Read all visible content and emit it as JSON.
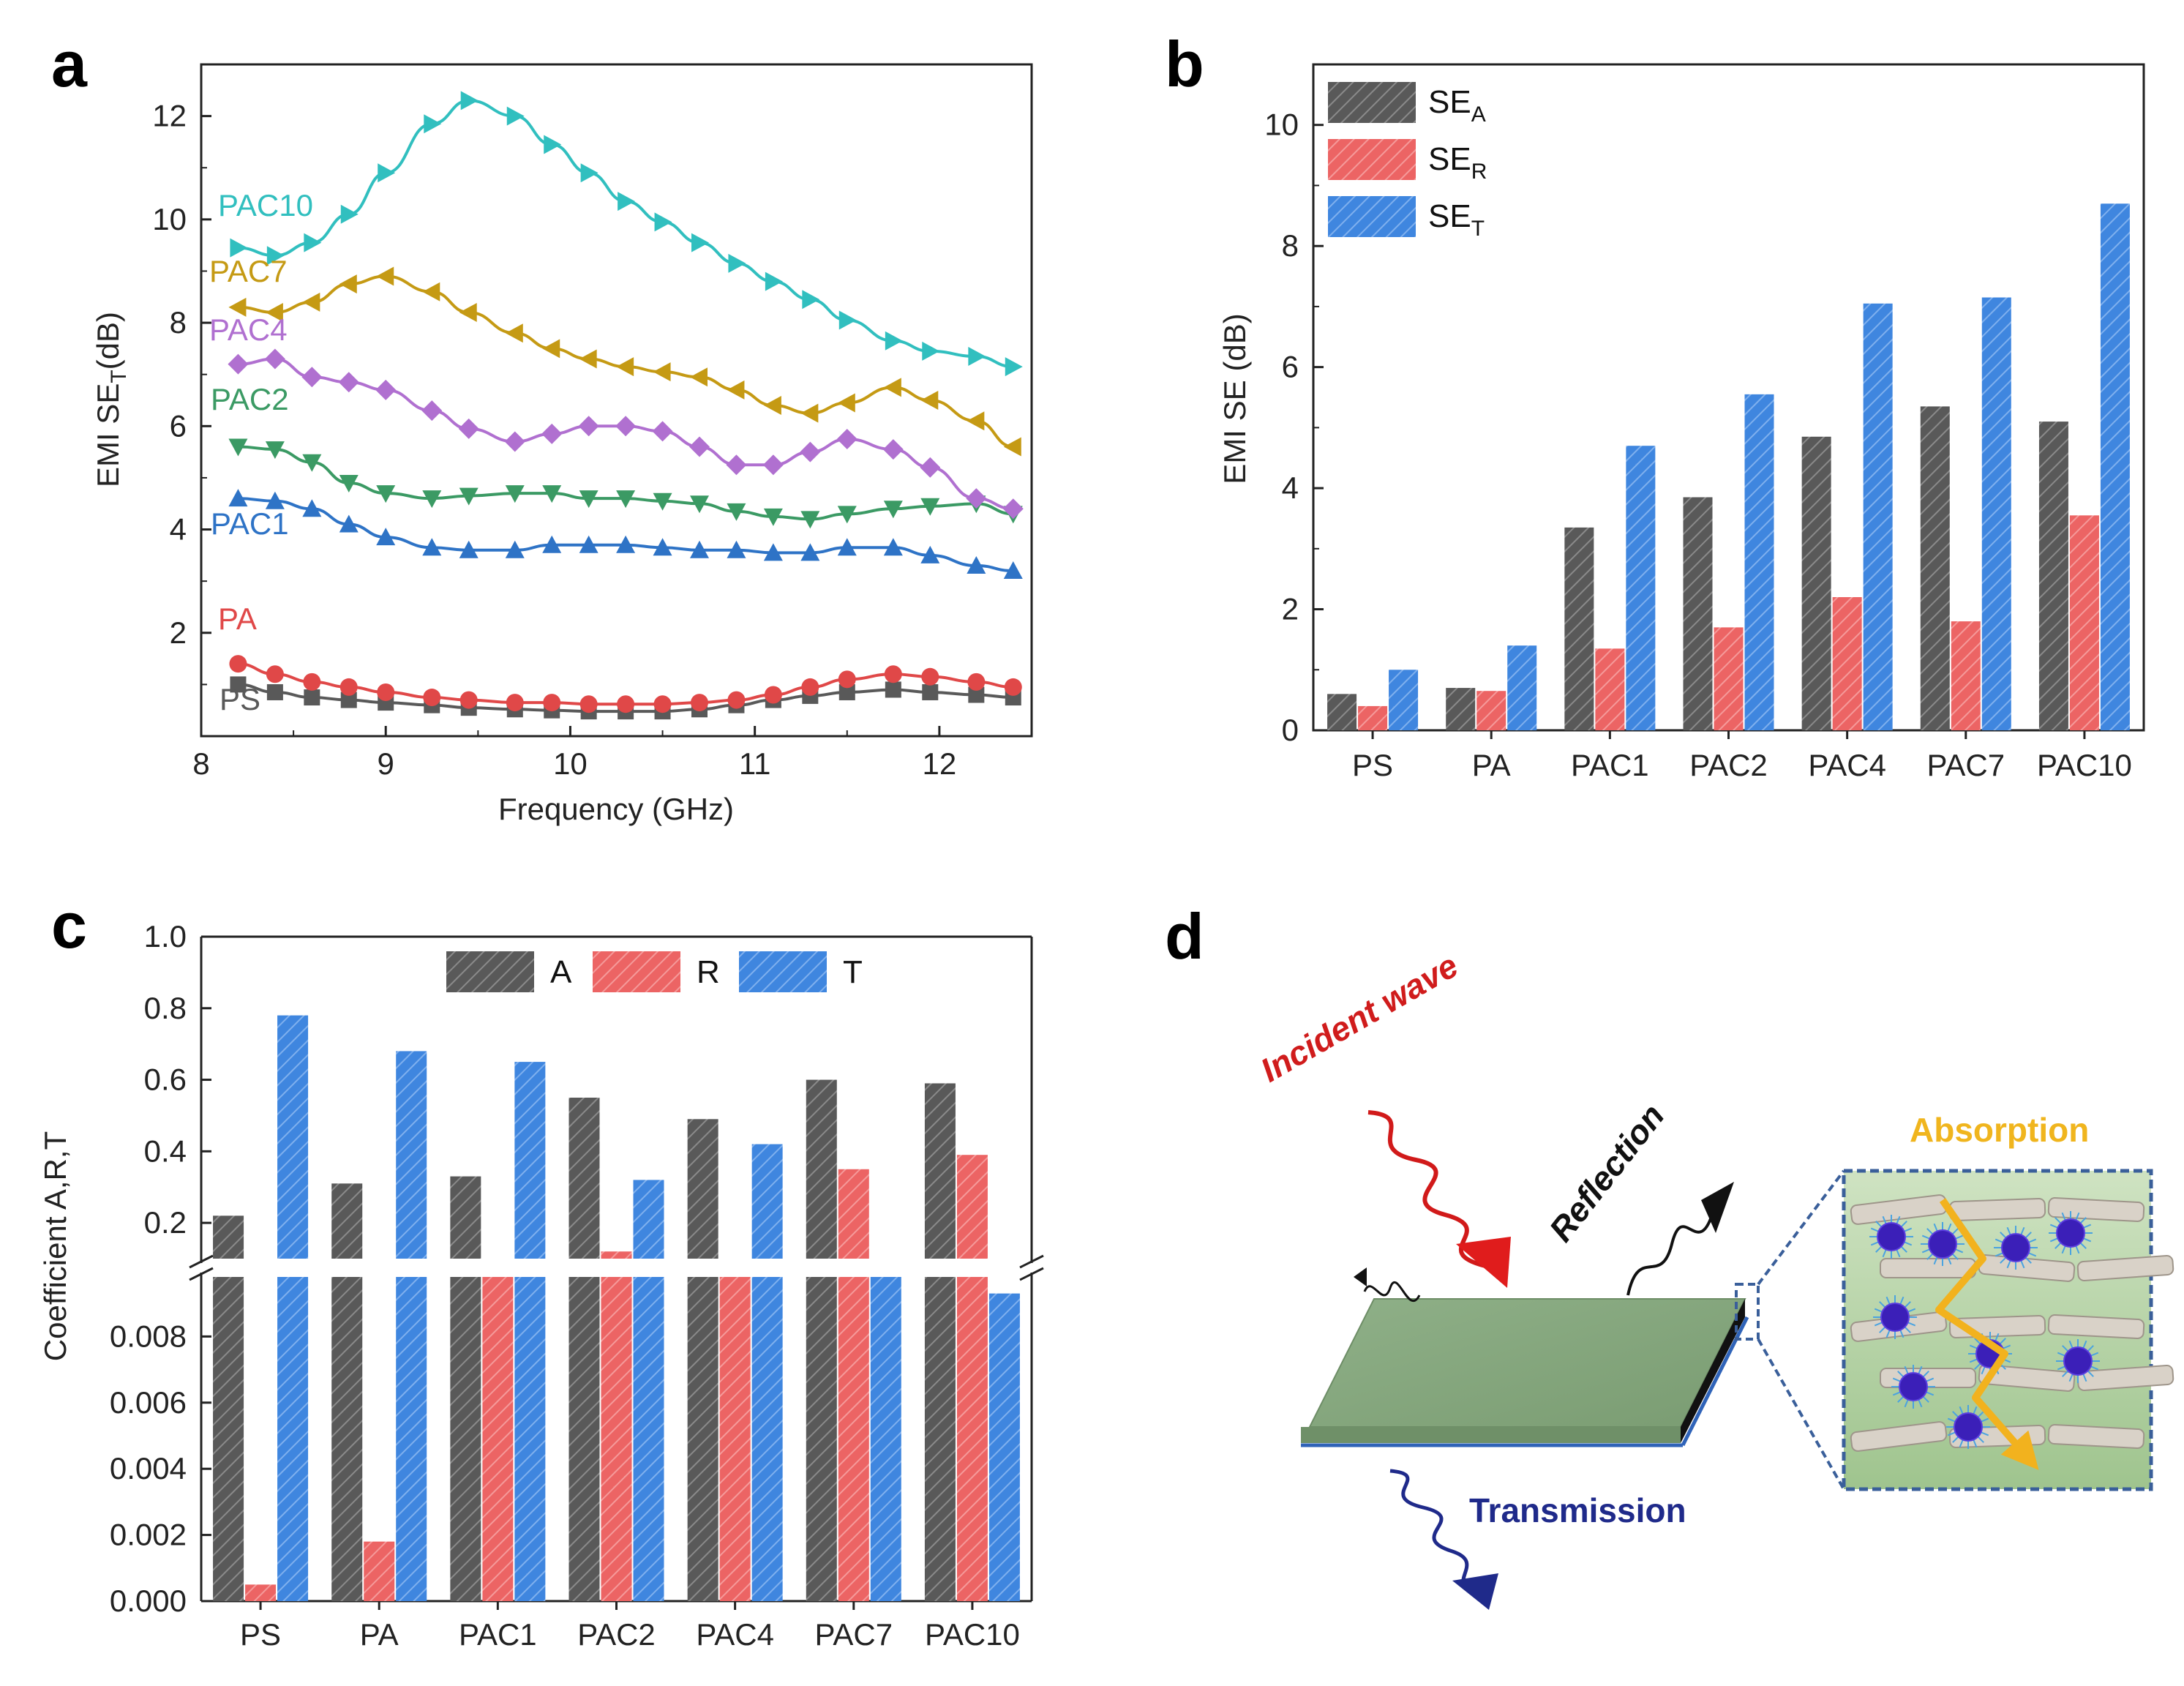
{
  "colors": {
    "PS": "#595959",
    "PA": "#e04848",
    "PAC1": "#2e73c6",
    "PAC2": "#3b9a64",
    "PAC4": "#b070d0",
    "PAC7": "#c59a14",
    "PAC10": "#31bfbf",
    "A": "#595959",
    "R": "#ec6464",
    "T": "#3f86df",
    "SE_A": "#595959",
    "SE_R": "#ec6464",
    "SE_T": "#3f86df"
  },
  "panels": {
    "a": "a",
    "b": "b",
    "c": "c",
    "d": "d"
  },
  "chart_data": [
    {
      "id": "a",
      "type": "line",
      "xlabel": "Frequency (GHz)",
      "ylabel": "EMI SE",
      "ylabel_sub": "T",
      "ylabel_suffix": "(dB)",
      "xlim": [
        8,
        12.5
      ],
      "ylim": [
        0,
        13
      ],
      "xticks": [
        "8",
        "9",
        "10",
        "11",
        "12"
      ],
      "yticks": [
        "2",
        "4",
        "6",
        "8",
        "10",
        "12"
      ],
      "x": [
        8.2,
        8.4,
        8.6,
        8.8,
        9.0,
        9.25,
        9.45,
        9.7,
        9.9,
        10.1,
        10.3,
        10.5,
        10.7,
        10.9,
        11.1,
        11.3,
        11.5,
        11.75,
        11.95,
        12.2,
        12.4
      ],
      "series": [
        {
          "name": "PS",
          "label": "PS",
          "marker": "square",
          "values": [
            1.0,
            0.85,
            0.75,
            0.7,
            0.65,
            0.6,
            0.55,
            0.52,
            0.5,
            0.48,
            0.48,
            0.48,
            0.52,
            0.6,
            0.7,
            0.78,
            0.85,
            0.9,
            0.85,
            0.8,
            0.75
          ]
        },
        {
          "name": "PA",
          "label": "PA",
          "marker": "circle",
          "values": [
            1.4,
            1.2,
            1.05,
            0.95,
            0.85,
            0.75,
            0.7,
            0.65,
            0.65,
            0.62,
            0.62,
            0.62,
            0.65,
            0.7,
            0.8,
            0.95,
            1.1,
            1.2,
            1.15,
            1.05,
            0.95
          ]
        },
        {
          "name": "PAC1",
          "label": "PAC1",
          "marker": "triangle-up",
          "values": [
            4.6,
            4.55,
            4.4,
            4.1,
            3.85,
            3.65,
            3.6,
            3.6,
            3.7,
            3.7,
            3.7,
            3.65,
            3.6,
            3.6,
            3.55,
            3.55,
            3.65,
            3.65,
            3.5,
            3.3,
            3.2
          ]
        },
        {
          "name": "PAC2",
          "label": "PAC2",
          "marker": "triangle-down",
          "values": [
            5.6,
            5.55,
            5.3,
            4.9,
            4.7,
            4.6,
            4.65,
            4.7,
            4.7,
            4.6,
            4.6,
            4.55,
            4.5,
            4.35,
            4.25,
            4.2,
            4.3,
            4.4,
            4.45,
            4.5,
            4.3
          ]
        },
        {
          "name": "PAC4",
          "label": "PAC4",
          "marker": "diamond",
          "values": [
            7.2,
            7.3,
            6.95,
            6.85,
            6.7,
            6.3,
            5.95,
            5.7,
            5.85,
            6.0,
            6.0,
            5.9,
            5.6,
            5.25,
            5.25,
            5.5,
            5.75,
            5.55,
            5.2,
            4.6,
            4.4
          ]
        },
        {
          "name": "PAC7",
          "label": "PAC7",
          "marker": "triangle-left",
          "values": [
            8.3,
            8.2,
            8.4,
            8.75,
            8.9,
            8.6,
            8.2,
            7.8,
            7.5,
            7.3,
            7.15,
            7.05,
            6.95,
            6.7,
            6.4,
            6.25,
            6.45,
            6.75,
            6.5,
            6.1,
            5.6
          ]
        },
        {
          "name": "PAC10",
          "label": "PAC10",
          "marker": "triangle-right",
          "values": [
            9.45,
            9.3,
            9.55,
            10.1,
            10.9,
            11.85,
            12.3,
            12.0,
            11.45,
            10.9,
            10.35,
            9.95,
            9.55,
            9.15,
            8.8,
            8.45,
            8.05,
            7.65,
            7.45,
            7.35,
            7.15
          ]
        }
      ]
    },
    {
      "id": "b",
      "type": "bar",
      "ylabel": "EMI SE (dB)",
      "ylim": [
        0,
        11
      ],
      "yticks": [
        "0",
        "2",
        "4",
        "6",
        "8",
        "10"
      ],
      "categories": [
        "PS",
        "PA",
        "PAC1",
        "PAC2",
        "PAC4",
        "PAC7",
        "PAC10"
      ],
      "series": [
        {
          "name": "SE_A",
          "label": "SE",
          "sub": "A",
          "values": [
            0.6,
            0.7,
            3.35,
            3.85,
            4.85,
            5.35,
            5.1
          ]
        },
        {
          "name": "SE_R",
          "label": "SE",
          "sub": "R",
          "values": [
            0.4,
            0.65,
            1.35,
            1.7,
            2.2,
            1.8,
            3.55
          ]
        },
        {
          "name": "SE_T",
          "label": "SE",
          "sub": "T",
          "values": [
            1.0,
            1.4,
            4.7,
            5.55,
            7.05,
            7.15,
            8.7
          ]
        }
      ]
    },
    {
      "id": "c",
      "type": "bar",
      "axis_break": true,
      "ylabel": "Coefficient A,R,T",
      "upper_range": [
        0.1,
        1.0
      ],
      "lower_range": [
        0.0,
        0.0098
      ],
      "upper_yticks": [
        "0.2",
        "0.4",
        "0.6",
        "0.8",
        "1.0"
      ],
      "lower_yticks": [
        "0.000",
        "0.002",
        "0.004",
        "0.006",
        "0.008"
      ],
      "categories": [
        "PS",
        "PA",
        "PAC1",
        "PAC2",
        "PAC4",
        "PAC7",
        "PAC10"
      ],
      "series": [
        {
          "name": "A",
          "label": "A",
          "values": [
            0.22,
            0.31,
            0.33,
            0.55,
            0.49,
            0.6,
            0.59
          ]
        },
        {
          "name": "R",
          "label": "R",
          "values": [
            0.0005,
            0.0018,
            0.05,
            0.12,
            0.06,
            0.35,
            0.39
          ]
        },
        {
          "name": "T",
          "label": "T",
          "values": [
            0.78,
            0.68,
            0.65,
            0.32,
            0.42,
            0.07,
            0.0093
          ]
        }
      ]
    }
  ],
  "diagram_d": {
    "incident": "Incident wave",
    "reflection": "Reflection",
    "transmission": "Transmission",
    "absorption": "Absorption"
  }
}
